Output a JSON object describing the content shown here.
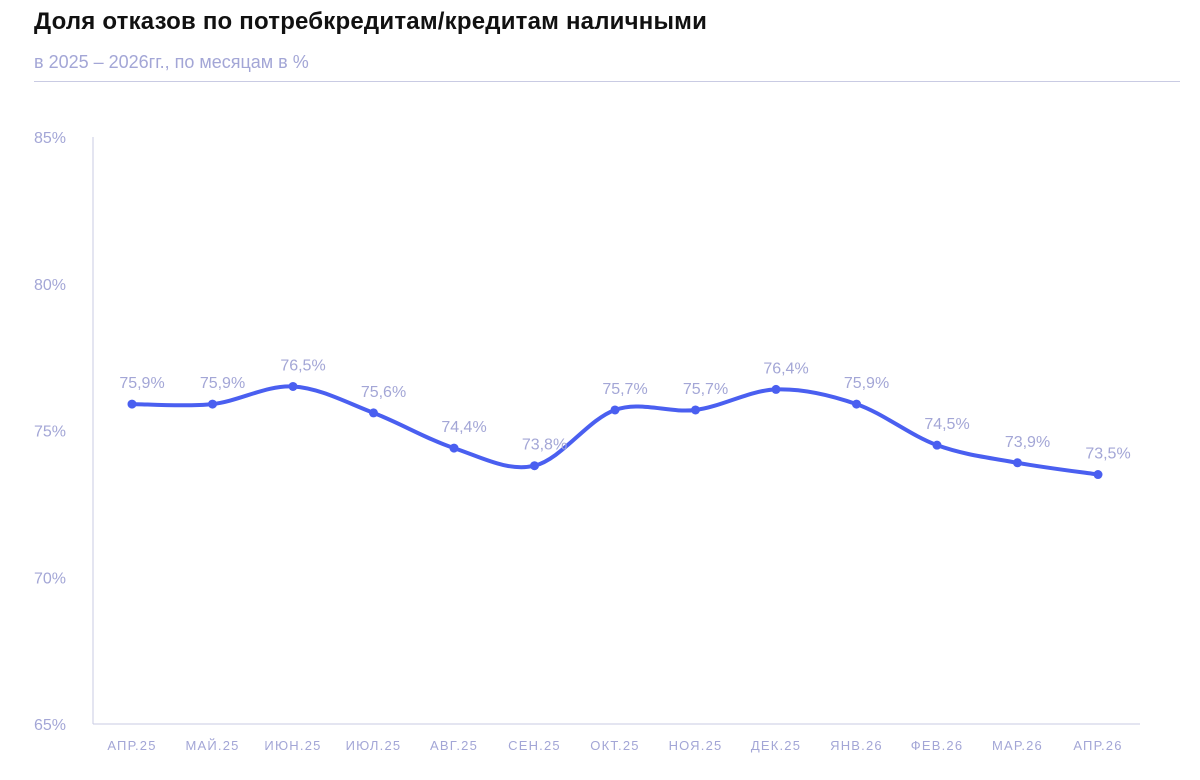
{
  "title": "Доля отказов по потребкредитам/кредитам наличными",
  "subtitle": "в 2025 – 2026гг., по месяцам в %",
  "chart_data": {
    "type": "line",
    "categories": [
      "АПР.25",
      "МАЙ.25",
      "ИЮН.25",
      "ИЮЛ.25",
      "АВГ.25",
      "СЕН.25",
      "ОКТ.25",
      "НОЯ.25",
      "ДЕК.25",
      "ЯНВ.26",
      "ФЕВ.26",
      "МАР.26",
      "АПР.26"
    ],
    "series": [
      {
        "values": [
          75.9,
          75.9,
          76.5,
          75.6,
          74.4,
          73.8,
          75.7,
          75.7,
          76.4,
          75.9,
          74.5,
          73.9,
          73.5
        ]
      }
    ],
    "data_labels": [
      "75,9%",
      "75,9%",
      "76,5%",
      "75,6%",
      "74,4%",
      "73,8%",
      "75,7%",
      "75,7%",
      "76,4%",
      "75,9%",
      "74,5%",
      "73,9%",
      "73,5%"
    ],
    "yticks": [
      85,
      80,
      75,
      70,
      65
    ],
    "ytick_labels": [
      "85%",
      "80%",
      "75%",
      "70%",
      "65%"
    ],
    "ylim": [
      65,
      85
    ],
    "grid": false,
    "colors": {
      "line": "#4a5ff0",
      "text": "#a3a6d6",
      "axis": "#c9cbe3",
      "title": "#111111"
    }
  }
}
